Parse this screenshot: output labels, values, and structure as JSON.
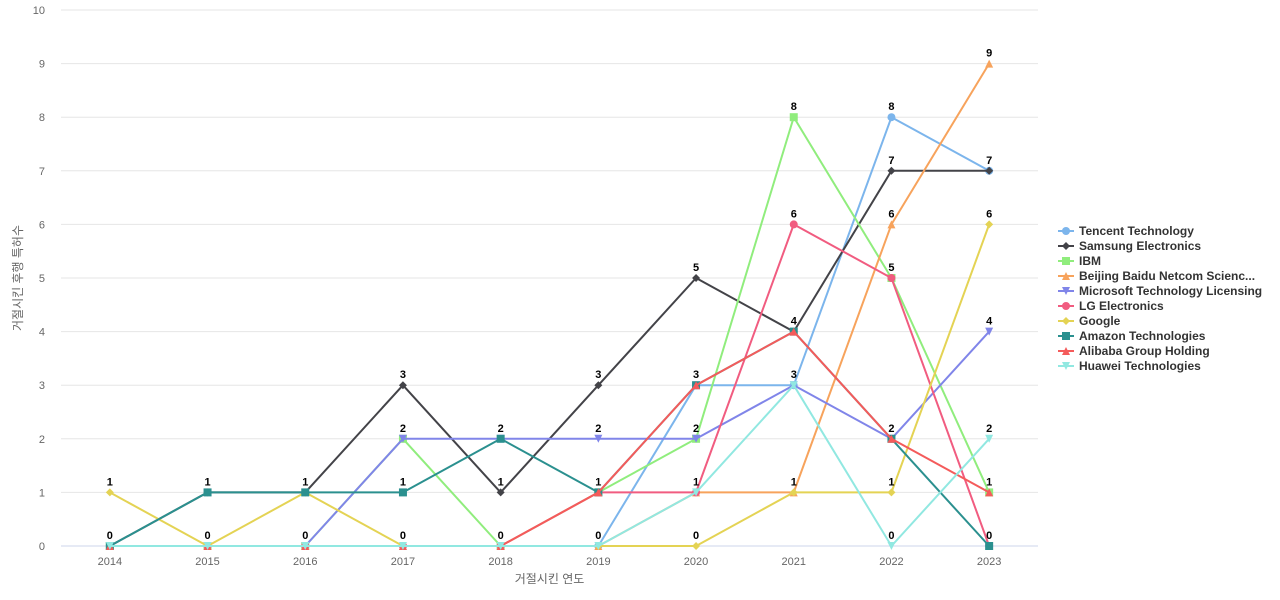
{
  "chart_data": {
    "type": "line",
    "xlabel": "거절시킨 연도",
    "ylabel": "거절시킨 후행 특허수",
    "ylim": [
      0,
      10
    ],
    "yticks": [
      0,
      1,
      2,
      3,
      4,
      5,
      6,
      7,
      8,
      9,
      10
    ],
    "grid": true,
    "legend_position": "right",
    "categories": [
      "2014",
      "2015",
      "2016",
      "2017",
      "2018",
      "2019",
      "2020",
      "2021",
      "2022",
      "2023"
    ],
    "series": [
      {
        "name": "Tencent Technology",
        "color": "#7cb5ec",
        "marker": "circle",
        "values": [
          0,
          0,
          0,
          0,
          0,
          0,
          3,
          3,
          8,
          7
        ]
      },
      {
        "name": "Samsung Electronics",
        "color": "#434348",
        "marker": "diamond",
        "values": [
          0,
          1,
          1,
          3,
          1,
          3,
          5,
          4,
          7,
          7
        ]
      },
      {
        "name": "IBM",
        "color": "#90ed7d",
        "marker": "square",
        "values": [
          0,
          0,
          0,
          2,
          0,
          1,
          2,
          8,
          5,
          1
        ]
      },
      {
        "name": "Beijing Baidu Netcom Scienc...",
        "color": "#f7a35c",
        "marker": "triangle",
        "values": [
          0,
          0,
          0,
          0,
          0,
          0,
          1,
          1,
          6,
          9
        ]
      },
      {
        "name": "Microsoft Technology Licensing",
        "color": "#8085e9",
        "marker": "triangle-down",
        "values": [
          0,
          0,
          0,
          2,
          2,
          2,
          2,
          3,
          2,
          4
        ]
      },
      {
        "name": "LG Electronics",
        "color": "#f15c80",
        "marker": "circle",
        "values": [
          0,
          0,
          0,
          0,
          0,
          1,
          1,
          6,
          5,
          0
        ]
      },
      {
        "name": "Google",
        "color": "#e4d354",
        "marker": "diamond",
        "values": [
          1,
          0,
          1,
          0,
          0,
          0,
          0,
          1,
          1,
          6
        ]
      },
      {
        "name": "Amazon Technologies",
        "color": "#2b908f",
        "marker": "square",
        "values": [
          0,
          1,
          1,
          1,
          2,
          1,
          3,
          4,
          2,
          0
        ]
      },
      {
        "name": "Alibaba Group Holding",
        "color": "#f45b5b",
        "marker": "triangle",
        "values": [
          0,
          0,
          0,
          0,
          0,
          1,
          3,
          4,
          2,
          1
        ]
      },
      {
        "name": "Huawei Technologies",
        "color": "#91e8e1",
        "marker": "triangle-down",
        "values": [
          0,
          0,
          0,
          0,
          0,
          0,
          1,
          3,
          0,
          2
        ]
      }
    ],
    "data_labels": [
      {
        "x": "2014",
        "y": 1,
        "text": "1"
      },
      {
        "x": "2014",
        "y": 0,
        "text": "0"
      },
      {
        "x": "2015",
        "y": 1,
        "text": "1"
      },
      {
        "x": "2015",
        "y": 0,
        "text": "0"
      },
      {
        "x": "2016",
        "y": 1,
        "text": "1"
      },
      {
        "x": "2016",
        "y": 0,
        "text": "0"
      },
      {
        "x": "2017",
        "y": 3,
        "text": "3"
      },
      {
        "x": "2017",
        "y": 2,
        "text": "2"
      },
      {
        "x": "2017",
        "y": 1,
        "text": "1"
      },
      {
        "x": "2017",
        "y": 0,
        "text": "0"
      },
      {
        "x": "2018",
        "y": 2,
        "text": "2"
      },
      {
        "x": "2018",
        "y": 1,
        "text": "1"
      },
      {
        "x": "2018",
        "y": 0,
        "text": "0"
      },
      {
        "x": "2019",
        "y": 3,
        "text": "3"
      },
      {
        "x": "2019",
        "y": 2,
        "text": "2"
      },
      {
        "x": "2019",
        "y": 1,
        "text": "1"
      },
      {
        "x": "2019",
        "y": 0,
        "text": "0"
      },
      {
        "x": "2020",
        "y": 5,
        "text": "5"
      },
      {
        "x": "2020",
        "y": 3,
        "text": "3"
      },
      {
        "x": "2020",
        "y": 2,
        "text": "2"
      },
      {
        "x": "2020",
        "y": 1,
        "text": "1"
      },
      {
        "x": "2020",
        "y": 0,
        "text": "0"
      },
      {
        "x": "2021",
        "y": 8,
        "text": "8"
      },
      {
        "x": "2021",
        "y": 6,
        "text": "6"
      },
      {
        "x": "2021",
        "y": 4,
        "text": "4"
      },
      {
        "x": "2021",
        "y": 3,
        "text": "3"
      },
      {
        "x": "2021",
        "y": 1,
        "text": "1"
      },
      {
        "x": "2022",
        "y": 8,
        "text": "8"
      },
      {
        "x": "2022",
        "y": 7,
        "text": "7"
      },
      {
        "x": "2022",
        "y": 6,
        "text": "6"
      },
      {
        "x": "2022",
        "y": 5,
        "text": "5"
      },
      {
        "x": "2022",
        "y": 2,
        "text": "2"
      },
      {
        "x": "2022",
        "y": 1,
        "text": "1"
      },
      {
        "x": "2022",
        "y": 0,
        "text": "0"
      },
      {
        "x": "2023",
        "y": 9,
        "text": "9"
      },
      {
        "x": "2023",
        "y": 7,
        "text": "7"
      },
      {
        "x": "2023",
        "y": 6,
        "text": "6"
      },
      {
        "x": "2023",
        "y": 4,
        "text": "4"
      },
      {
        "x": "2023",
        "y": 2,
        "text": "2"
      },
      {
        "x": "2023",
        "y": 1,
        "text": "1"
      },
      {
        "x": "2023",
        "y": 0,
        "text": "0"
      }
    ]
  }
}
